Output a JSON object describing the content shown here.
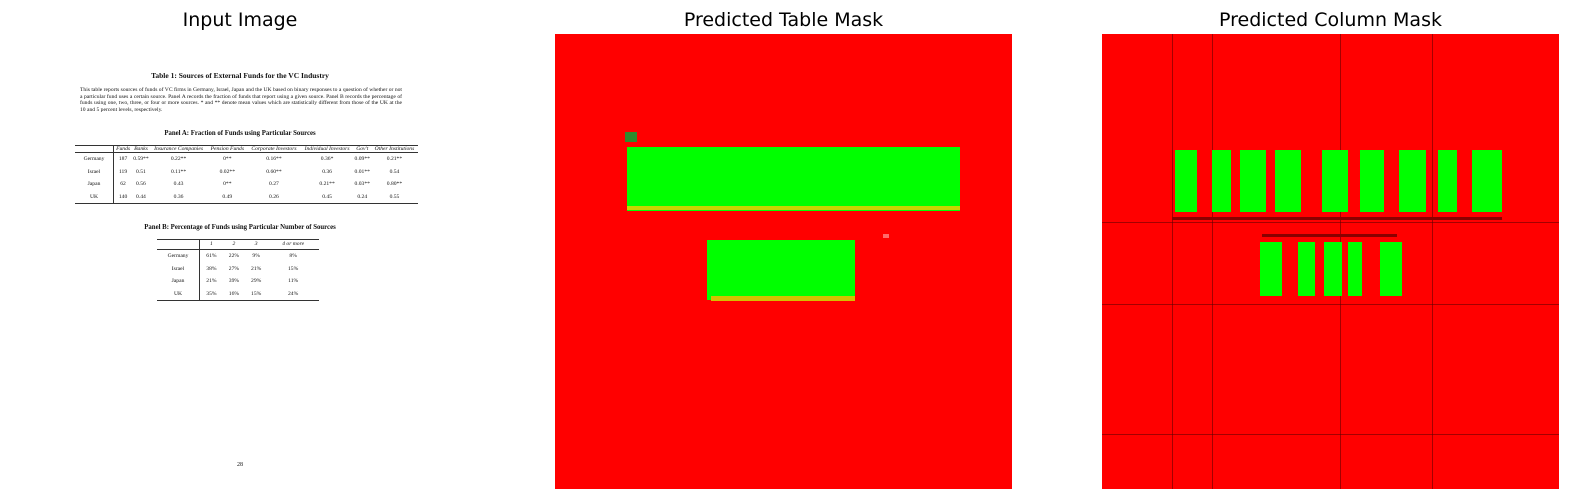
{
  "panels": {
    "input": "Input Image",
    "table_mask": "Predicted Table Mask",
    "column_mask": "Predicted Column Mask"
  },
  "doc": {
    "title": "Table 1: Sources of External Funds for the VC Industry",
    "paragraph": "This table reports sources of funds of VC firms in Germany, Israel, Japan and the UK based on binary responses to a question of whether or not a particular fund uses a certain source. Panel A records the fraction of funds that report using a given source. Panel B records the percentage of funds using one, two, three, or four or more sources. * and ** denote mean values which are statistically different from those of the UK at the 10 and 5 percent levels, respectively.",
    "panel_a_title": "Panel A: Fraction of Funds using Particular Sources",
    "panel_a": {
      "headers": [
        "",
        "Funds",
        "Banks",
        "Insurance Companies",
        "Pension Funds",
        "Corporate Investors",
        "Individual Investors",
        "Gov't",
        "Other Institutions"
      ],
      "rows": [
        [
          "Germany",
          "187",
          "0.59**",
          "0.22**",
          "0**",
          "0.16**",
          "0.36*",
          "0.09**",
          "0.21**"
        ],
        [
          "Israel",
          "119",
          "0.51",
          "0.11**",
          "0.02**",
          "0.60**",
          "0.36",
          "0.01**",
          "0.54"
        ],
        [
          "Japan",
          "62",
          "0.56",
          "0.43",
          "0**",
          "0.27",
          "0.21**",
          "0.03**",
          "0.80**"
        ],
        [
          "UK",
          "140",
          "0.44",
          "0.36",
          "0.49",
          "0.26",
          "0.45",
          "0.24",
          "0.55"
        ]
      ]
    },
    "panel_b_title": "Panel B: Percentage of Funds using Particular Number of Sources",
    "panel_b": {
      "headers": [
        "",
        "1",
        "2",
        "3",
        "4 or more"
      ],
      "rows": [
        [
          "Germany",
          "61%",
          "22%",
          "9%",
          "8%"
        ],
        [
          "Israel",
          "38%",
          "27%",
          "21%",
          "15%"
        ],
        [
          "Japan",
          "21%",
          "39%",
          "29%",
          "11%"
        ],
        [
          "UK",
          "35%",
          "16%",
          "15%",
          "24%"
        ]
      ]
    },
    "page_number": "28"
  },
  "colors": {
    "background_mask": "#ff0000",
    "foreground_mask": "#00ff00"
  }
}
